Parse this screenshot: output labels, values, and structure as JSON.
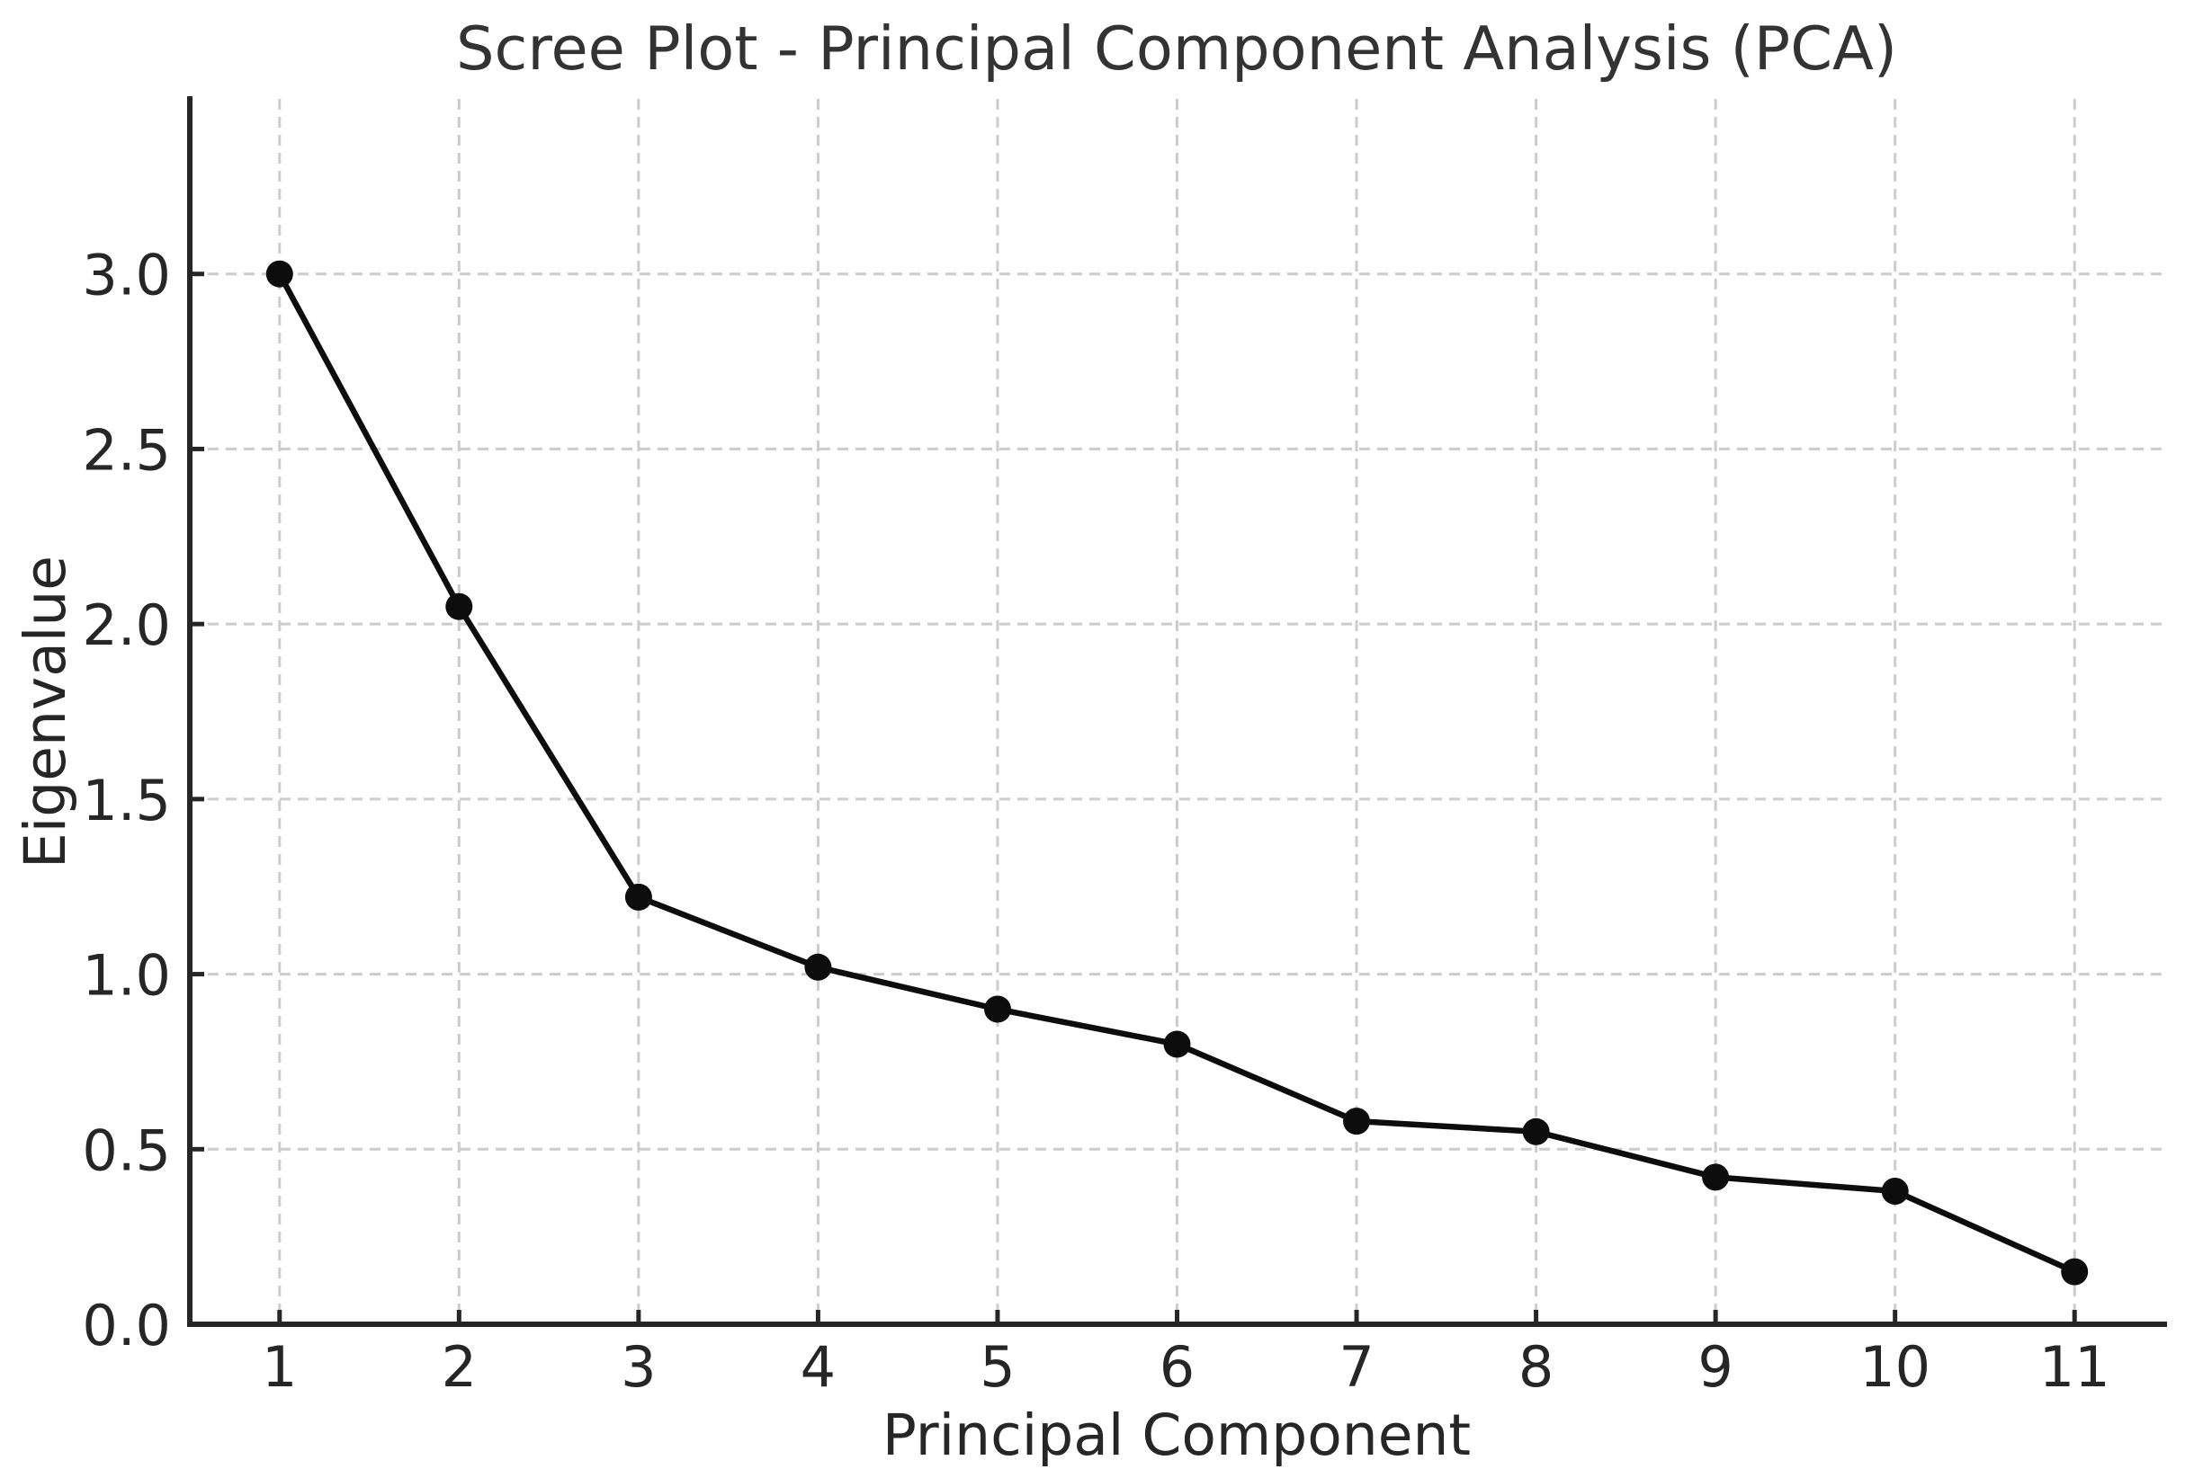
{
  "figure_title": "Scree Plot - Principal Component Analysis (PCA)",
  "chart_data": {
    "type": "line",
    "title": "Scree Plot - Principal Component Analysis (PCA)",
    "xlabel": "Principal Component",
    "ylabel": "Eigenvalue",
    "x": [
      1,
      2,
      3,
      4,
      5,
      6,
      7,
      8,
      9,
      10,
      11
    ],
    "series": [
      {
        "name": "Eigenvalue",
        "values": [
          3.0,
          2.05,
          1.22,
          1.02,
          0.9,
          0.8,
          0.58,
          0.55,
          0.42,
          0.38,
          0.15
        ]
      }
    ],
    "xlim": [
      0.5,
      11.5
    ],
    "ylim": [
      0,
      3.5
    ],
    "xticks": [
      1,
      2,
      3,
      4,
      5,
      6,
      7,
      8,
      9,
      10,
      11
    ],
    "xtick_labels": [
      "1",
      "2",
      "3",
      "4",
      "5",
      "6",
      "7",
      "8",
      "9",
      "10",
      "11"
    ],
    "yticks": [
      0,
      0.5,
      1,
      1.5,
      2,
      2.5,
      3
    ],
    "ytick_labels": [
      "0.0",
      "0.5",
      "1.0",
      "1.5",
      "2.0",
      "2.5",
      "3.0"
    ],
    "grid": true,
    "grid_linestyle": "dashed",
    "legend": "none",
    "marker": "circle",
    "line_shape": "straight",
    "colors": {
      "line": "#0d0d0d",
      "marker": "#0d0d0d",
      "grid": "#cccccc",
      "spine": "#262626",
      "tick": "#262626",
      "text": "#262626",
      "title": "#333333",
      "background": "#ffffff"
    }
  }
}
